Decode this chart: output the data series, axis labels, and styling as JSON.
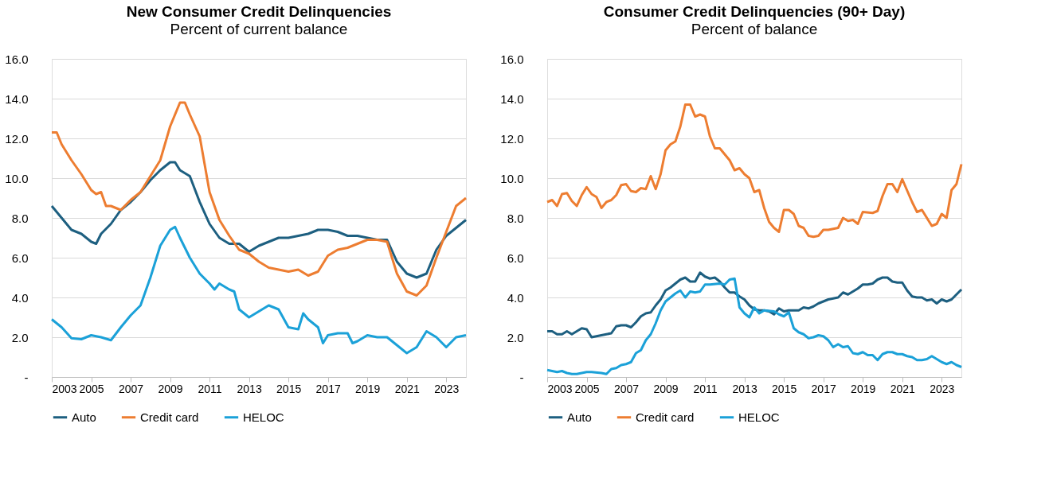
{
  "chart_data": [
    {
      "type": "line",
      "title": "New Consumer Credit Delinquencies",
      "subtitle": "Percent of current balance",
      "xlim": [
        2003,
        2024
      ],
      "xticks": [
        2003,
        2005,
        2007,
        2009,
        2011,
        2013,
        2015,
        2017,
        2019,
        2021,
        2023
      ],
      "ylim": [
        0,
        16
      ],
      "yticks": [
        {
          "value": 0,
          "label": "-"
        },
        {
          "value": 2,
          "label": "2.0"
        },
        {
          "value": 4,
          "label": "4.0"
        },
        {
          "value": 6,
          "label": "6.0"
        },
        {
          "value": 8,
          "label": "8.0"
        },
        {
          "value": 10,
          "label": "10.0"
        },
        {
          "value": 12,
          "label": "12.0"
        },
        {
          "value": 14,
          "label": "14.0"
        },
        {
          "value": 16,
          "label": "16.0"
        }
      ],
      "grid": "y",
      "legend": "bottom",
      "line_style": "solid",
      "marker": "none",
      "series": [
        {
          "name": "Auto",
          "color": "#1d5f80",
          "x": [
            2003,
            2003.5,
            2004,
            2004.5,
            2005,
            2005.25,
            2005.5,
            2006,
            2006.5,
            2007,
            2007.5,
            2008,
            2008.5,
            2009,
            2009.25,
            2009.5,
            2010,
            2010.5,
            2011,
            2011.5,
            2012,
            2012.5,
            2013,
            2013.5,
            2014,
            2014.5,
            2015,
            2015.5,
            2016,
            2016.5,
            2017,
            2017.5,
            2018,
            2018.5,
            2019,
            2019.5,
            2020,
            2020.5,
            2021,
            2021.5,
            2022,
            2022.5,
            2023,
            2023.5,
            2024
          ],
          "values": [
            8.6,
            8.0,
            7.4,
            7.2,
            6.8,
            6.7,
            7.2,
            7.7,
            8.4,
            8.8,
            9.3,
            9.9,
            10.4,
            10.8,
            10.8,
            10.4,
            10.1,
            8.8,
            7.7,
            7.0,
            6.7,
            6.7,
            6.3,
            6.6,
            6.8,
            7.0,
            7.0,
            7.1,
            7.2,
            7.4,
            7.4,
            7.3,
            7.1,
            7.1,
            7.0,
            6.9,
            6.9,
            5.8,
            5.2,
            5.0,
            5.2,
            6.4,
            7.1,
            7.5,
            7.9
          ]
        },
        {
          "name": "Credit card",
          "color": "#ed7d31",
          "x": [
            2003,
            2003.25,
            2003.5,
            2004,
            2004.5,
            2005,
            2005.25,
            2005.5,
            2005.75,
            2006,
            2006.5,
            2007,
            2007.5,
            2008,
            2008.5,
            2009,
            2009.5,
            2009.75,
            2010,
            2010.5,
            2011,
            2011.5,
            2012,
            2012.5,
            2013,
            2013.5,
            2014,
            2014.5,
            2015,
            2015.5,
            2016,
            2016.5,
            2017,
            2017.5,
            2018,
            2018.5,
            2019,
            2019.5,
            2020,
            2020.5,
            2021,
            2021.5,
            2022,
            2022.5,
            2023,
            2023.5,
            2024
          ],
          "values": [
            12.3,
            12.3,
            11.7,
            10.9,
            10.2,
            9.4,
            9.2,
            9.3,
            8.6,
            8.6,
            8.4,
            8.9,
            9.3,
            10.1,
            10.9,
            12.6,
            13.8,
            13.8,
            13.2,
            12.1,
            9.3,
            7.9,
            7.1,
            6.4,
            6.2,
            5.8,
            5.5,
            5.4,
            5.3,
            5.4,
            5.1,
            5.3,
            6.1,
            6.4,
            6.5,
            6.7,
            6.9,
            6.9,
            6.8,
            5.2,
            4.3,
            4.1,
            4.6,
            6.0,
            7.3,
            8.6,
            9.0
          ]
        },
        {
          "name": "HELOC",
          "color": "#1ba1d8",
          "x": [
            2003,
            2003.5,
            2004,
            2004.5,
            2005,
            2005.5,
            2006,
            2006.5,
            2007,
            2007.5,
            2008,
            2008.5,
            2009,
            2009.25,
            2009.5,
            2010,
            2010.5,
            2011,
            2011.25,
            2011.5,
            2012,
            2012.25,
            2012.5,
            2013,
            2013.5,
            2014,
            2014.5,
            2015,
            2015.5,
            2015.75,
            2016,
            2016.5,
            2016.75,
            2017,
            2017.5,
            2018,
            2018.25,
            2018.5,
            2019,
            2019.5,
            2020,
            2020.5,
            2021,
            2021.5,
            2022,
            2022.5,
            2023,
            2023.5,
            2024
          ],
          "values": [
            2.9,
            2.5,
            1.95,
            1.9,
            2.1,
            2.0,
            1.85,
            2.5,
            3.1,
            3.6,
            5.0,
            6.6,
            7.4,
            7.55,
            7.0,
            6.0,
            5.2,
            4.7,
            4.4,
            4.7,
            4.4,
            4.3,
            3.4,
            3.0,
            3.3,
            3.6,
            3.4,
            2.5,
            2.4,
            3.2,
            2.9,
            2.5,
            1.7,
            2.1,
            2.2,
            2.2,
            1.7,
            1.8,
            2.1,
            2.0,
            2.0,
            1.6,
            1.2,
            1.5,
            2.3,
            2.0,
            1.5,
            2.0,
            2.1
          ]
        }
      ]
    },
    {
      "type": "line",
      "title": "Consumer Credit Delinquencies (90+ Day)",
      "subtitle": "Percent of balance",
      "xlim": [
        2003,
        2024
      ],
      "xticks": [
        2003,
        2005,
        2007,
        2009,
        2011,
        2013,
        2015,
        2017,
        2019,
        2021,
        2023
      ],
      "ylim": [
        0,
        16
      ],
      "yticks": [
        {
          "value": 0,
          "label": "-"
        },
        {
          "value": 2,
          "label": "2.0"
        },
        {
          "value": 4,
          "label": "4.0"
        },
        {
          "value": 6,
          "label": "6.0"
        },
        {
          "value": 8,
          "label": "8.0"
        },
        {
          "value": 10,
          "label": "10.0"
        },
        {
          "value": 12,
          "label": "12.0"
        },
        {
          "value": 14,
          "label": "14.0"
        },
        {
          "value": 16,
          "label": "16.0"
        }
      ],
      "grid": "y",
      "legend": "bottom",
      "line_style": "solid",
      "marker": "none",
      "series": [
        {
          "name": "Auto",
          "color": "#1d5f80",
          "x": [
            2003,
            2003.25,
            2003.5,
            2003.75,
            2004,
            2004.25,
            2004.5,
            2004.75,
            2005,
            2005.25,
            2005.5,
            2005.75,
            2006,
            2006.25,
            2006.5,
            2006.75,
            2007,
            2007.25,
            2007.5,
            2007.75,
            2008,
            2008.25,
            2008.5,
            2008.75,
            2009,
            2009.25,
            2009.5,
            2009.75,
            2010,
            2010.25,
            2010.5,
            2010.75,
            2011,
            2011.25,
            2011.5,
            2011.75,
            2012,
            2012.25,
            2012.5,
            2012.75,
            2013,
            2013.25,
            2013.5,
            2013.75,
            2014,
            2014.25,
            2014.5,
            2014.75,
            2015,
            2015.25,
            2015.75,
            2016,
            2016.25,
            2016.5,
            2016.75,
            2017,
            2017.25,
            2017.75,
            2018,
            2018.25,
            2018.5,
            2018.75,
            2019,
            2019.25,
            2019.5,
            2019.75,
            2020,
            2020.25,
            2020.5,
            2020.75,
            2021,
            2021.25,
            2021.5,
            2021.75,
            2022,
            2022.25,
            2022.5,
            2022.75,
            2023,
            2023.25,
            2023.5,
            2023.75,
            2024
          ],
          "values": [
            2.3,
            2.3,
            2.15,
            2.15,
            2.3,
            2.15,
            2.3,
            2.45,
            2.4,
            2.0,
            2.05,
            2.1,
            2.15,
            2.2,
            2.55,
            2.6,
            2.6,
            2.5,
            2.75,
            3.05,
            3.2,
            3.25,
            3.6,
            3.9,
            4.35,
            4.5,
            4.7,
            4.9,
            5.0,
            4.8,
            4.8,
            5.25,
            5.05,
            4.95,
            5.0,
            4.8,
            4.5,
            4.25,
            4.25,
            4.05,
            3.9,
            3.6,
            3.4,
            3.35,
            3.35,
            3.3,
            3.15,
            3.45,
            3.3,
            3.35,
            3.35,
            3.5,
            3.45,
            3.55,
            3.7,
            3.8,
            3.9,
            4.0,
            4.25,
            4.15,
            4.3,
            4.45,
            4.65,
            4.65,
            4.7,
            4.9,
            5.0,
            5.0,
            4.8,
            4.75,
            4.75,
            4.35,
            4.05,
            4.0,
            4.0,
            3.85,
            3.9,
            3.7,
            3.9,
            3.8,
            3.9,
            4.15,
            4.4
          ]
        },
        {
          "name": "Credit card",
          "color": "#ed7d31",
          "x": [
            2003,
            2003.25,
            2003.5,
            2003.75,
            2004,
            2004.25,
            2004.5,
            2004.75,
            2005,
            2005.25,
            2005.5,
            2005.75,
            2006,
            2006.25,
            2006.5,
            2006.75,
            2007,
            2007.25,
            2007.5,
            2007.75,
            2008,
            2008.25,
            2008.5,
            2008.75,
            2009,
            2009.25,
            2009.5,
            2009.75,
            2010,
            2010.25,
            2010.5,
            2010.75,
            2011,
            2011.25,
            2011.5,
            2011.75,
            2012,
            2012.25,
            2012.5,
            2012.75,
            2013,
            2013.25,
            2013.5,
            2013.75,
            2014,
            2014.25,
            2014.5,
            2014.75,
            2015,
            2015.25,
            2015.5,
            2015.75,
            2016,
            2016.25,
            2016.5,
            2016.75,
            2017,
            2017.25,
            2017.75,
            2018,
            2018.25,
            2018.5,
            2018.75,
            2019,
            2019.5,
            2019.75,
            2020,
            2020.25,
            2020.5,
            2020.75,
            2021,
            2021.5,
            2021.75,
            2022,
            2022.5,
            2022.75,
            2023,
            2023.25,
            2023.5,
            2023.75,
            2024
          ],
          "values": [
            8.8,
            8.9,
            8.6,
            9.2,
            9.25,
            8.85,
            8.6,
            9.15,
            9.55,
            9.2,
            9.05,
            8.5,
            8.8,
            8.9,
            9.15,
            9.65,
            9.7,
            9.35,
            9.3,
            9.5,
            9.45,
            10.1,
            9.45,
            10.2,
            11.4,
            11.7,
            11.85,
            12.6,
            13.7,
            13.7,
            13.1,
            13.2,
            13.1,
            12.1,
            11.5,
            11.5,
            11.2,
            10.9,
            10.4,
            10.5,
            10.2,
            10.0,
            9.3,
            9.4,
            8.5,
            7.8,
            7.5,
            7.3,
            8.4,
            8.4,
            8.2,
            7.6,
            7.5,
            7.1,
            7.05,
            7.1,
            7.4,
            7.4,
            7.5,
            8.0,
            7.85,
            7.9,
            7.7,
            8.3,
            8.25,
            8.35,
            9.1,
            9.7,
            9.7,
            9.3,
            9.95,
            8.8,
            8.3,
            8.4,
            7.6,
            7.7,
            8.2,
            8.0,
            9.4,
            9.7,
            10.7
          ]
        },
        {
          "name": "HELOC",
          "color": "#1ba1d8",
          "x": [
            2003,
            2003.25,
            2003.5,
            2003.75,
            2004,
            2004.25,
            2004.5,
            2004.75,
            2005,
            2005.25,
            2005.75,
            2006,
            2006.25,
            2006.5,
            2006.75,
            2007,
            2007.25,
            2007.5,
            2007.75,
            2008,
            2008.25,
            2008.5,
            2008.75,
            2009,
            2009.25,
            2009.5,
            2009.75,
            2010,
            2010.25,
            2010.5,
            2010.75,
            2011,
            2011.25,
            2011.75,
            2012,
            2012.25,
            2012.5,
            2012.75,
            2013,
            2013.25,
            2013.5,
            2013.75,
            2014,
            2014.5,
            2014.75,
            2015,
            2015.25,
            2015.5,
            2015.75,
            2016,
            2016.25,
            2016.5,
            2016.75,
            2017,
            2017.25,
            2017.5,
            2017.75,
            2018,
            2018.25,
            2018.5,
            2018.75,
            2019,
            2019.25,
            2019.5,
            2019.75,
            2020,
            2020.25,
            2020.5,
            2020.75,
            2021,
            2021.25,
            2021.5,
            2021.75,
            2022,
            2022.25,
            2022.5,
            2022.75,
            2023,
            2023.25,
            2023.5,
            2023.75,
            2024
          ],
          "values": [
            0.35,
            0.3,
            0.25,
            0.3,
            0.2,
            0.15,
            0.15,
            0.2,
            0.25,
            0.25,
            0.2,
            0.15,
            0.4,
            0.45,
            0.6,
            0.65,
            0.75,
            1.2,
            1.35,
            1.85,
            2.15,
            2.7,
            3.35,
            3.8,
            4.0,
            4.2,
            4.35,
            4.0,
            4.3,
            4.25,
            4.3,
            4.65,
            4.65,
            4.7,
            4.65,
            4.9,
            4.95,
            3.5,
            3.2,
            3.0,
            3.5,
            3.2,
            3.35,
            3.3,
            3.15,
            3.05,
            3.25,
            2.45,
            2.25,
            2.15,
            1.95,
            2.0,
            2.1,
            2.05,
            1.85,
            1.5,
            1.65,
            1.5,
            1.55,
            1.2,
            1.15,
            1.25,
            1.1,
            1.1,
            0.85,
            1.15,
            1.25,
            1.25,
            1.15,
            1.15,
            1.05,
            1.0,
            0.85,
            0.85,
            0.9,
            1.05,
            0.9,
            0.75,
            0.65,
            0.75,
            0.6,
            0.5
          ]
        }
      ]
    }
  ]
}
